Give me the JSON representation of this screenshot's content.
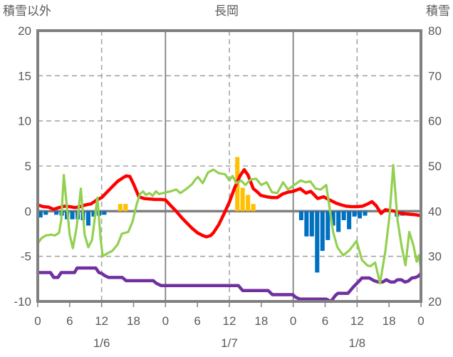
{
  "chart_data": {
    "type": "line",
    "combo": "bars + lines, dual axis",
    "title": "長岡",
    "left_axis": {
      "title": "積雪以外",
      "min": -10,
      "max": 20,
      "ticks": [
        20,
        15,
        10,
        5,
        0,
        -5,
        -10
      ],
      "tick_labels": [
        "20",
        "15",
        "10",
        "5",
        "0",
        "-5",
        "-10"
      ]
    },
    "right_axis": {
      "title": "積雪",
      "min": 20,
      "max": 80,
      "ticks": [
        80,
        70,
        60,
        50,
        40,
        30,
        20
      ],
      "tick_labels": [
        "80",
        "70",
        "60",
        "50",
        "40",
        "30",
        "20"
      ]
    },
    "x_axis": {
      "hours_total": 72,
      "label_interval_hours": 6,
      "hour_tick_labels": [
        "0",
        "6",
        "12",
        "18",
        "0",
        "6",
        "12",
        "18",
        "0",
        "6",
        "12",
        "18",
        "0"
      ],
      "date_labels": [
        {
          "label": "1/6",
          "hour": 12
        },
        {
          "label": "1/7",
          "hour": 36
        },
        {
          "label": "1/8",
          "hour": 60
        }
      ],
      "dashed_gridline_hours": [
        12,
        36,
        60
      ],
      "solid_gridline_hours": [
        24,
        48
      ]
    },
    "colors": {
      "red_line": "#FF0000",
      "green_line": "#92D050",
      "purple_line": "#7030A0",
      "blue_bars": "#0070C0",
      "orange_bars": "#FFC000",
      "border": "#808080",
      "gridline": "#A6A6A6",
      "text": "#595959"
    },
    "series": [
      {
        "name": "blue-bars",
        "type": "bar",
        "axis": "left",
        "color": "#0070C0",
        "points": [
          [
            0,
            -0.7
          ],
          [
            1,
            -0.4
          ],
          [
            3,
            -0.4
          ],
          [
            4,
            -0.5
          ],
          [
            5,
            -0.9
          ],
          [
            6,
            -0.9
          ],
          [
            7,
            -0.9
          ],
          [
            8,
            -1.0
          ],
          [
            9,
            -1.6
          ],
          [
            10,
            -0.6
          ],
          [
            11,
            -0.5
          ],
          [
            12,
            -0.4
          ],
          [
            49,
            -1.0
          ],
          [
            50,
            -2.8
          ],
          [
            51,
            -2.8
          ],
          [
            52,
            -6.8
          ],
          [
            53,
            -4.4
          ],
          [
            54,
            -3.2
          ],
          [
            55,
            -1.6
          ],
          [
            56,
            -2.3
          ],
          [
            57,
            -1.0
          ],
          [
            58,
            -2.0
          ],
          [
            59,
            -0.6
          ],
          [
            60,
            -0.8
          ],
          [
            61,
            -0.5
          ],
          [
            67,
            -0.6
          ],
          [
            68,
            -0.5
          ]
        ]
      },
      {
        "name": "orange-bars",
        "type": "bar",
        "axis": "left",
        "color": "#FFC000",
        "points": [
          [
            15,
            0.8
          ],
          [
            16,
            0.8
          ],
          [
            37,
            6.0
          ],
          [
            38,
            2.6
          ],
          [
            39,
            1.8
          ],
          [
            40,
            0.8
          ]
        ]
      },
      {
        "name": "purple-line",
        "type": "line",
        "axis": "right",
        "color": "#7030A0",
        "width": 4.5,
        "points": [
          [
            0,
            26.4
          ],
          [
            2.4,
            26.4
          ],
          [
            3,
            25.3
          ],
          [
            3.8,
            25.3
          ],
          [
            4.4,
            26.4
          ],
          [
            6.9,
            26.4
          ],
          [
            7.4,
            27.4
          ],
          [
            10.9,
            27.4
          ],
          [
            11.5,
            26.4
          ],
          [
            12,
            26.2
          ],
          [
            12.6,
            25.7
          ],
          [
            13.3,
            25.3
          ],
          [
            15.9,
            25.3
          ],
          [
            16.6,
            24.6
          ],
          [
            21.7,
            24.6
          ],
          [
            22.3,
            24.0
          ],
          [
            23.2,
            23.5
          ],
          [
            37.7,
            23.5
          ],
          [
            38.5,
            22.4
          ],
          [
            43.3,
            22.4
          ],
          [
            44.1,
            21.5
          ],
          [
            47.9,
            21.5
          ],
          [
            48.5,
            20.9
          ],
          [
            49.3,
            20.5
          ],
          [
            54.2,
            20.5
          ],
          [
            55.1,
            20.0
          ],
          [
            55.9,
            21.3
          ],
          [
            56.4,
            21.8
          ],
          [
            58.3,
            21.8
          ],
          [
            59.3,
            23.2
          ],
          [
            60.3,
            24.4
          ],
          [
            60.9,
            25.2
          ],
          [
            62.3,
            25.2
          ],
          [
            63.2,
            24.6
          ],
          [
            64,
            24.3
          ],
          [
            64.8,
            24.3
          ],
          [
            65.5,
            24.8
          ],
          [
            66.3,
            24.3
          ],
          [
            67,
            24.3
          ],
          [
            67.6,
            24.8
          ],
          [
            68.3,
            24.8
          ],
          [
            69,
            24.3
          ],
          [
            69.6,
            24.5
          ],
          [
            70.3,
            25.2
          ],
          [
            71,
            25.3
          ],
          [
            71.5,
            25.6
          ],
          [
            72,
            26.2
          ]
        ]
      },
      {
        "name": "red-line",
        "type": "line",
        "axis": "left",
        "color": "#FF0000",
        "width": 4.5,
        "points": [
          [
            0,
            0.7
          ],
          [
            1,
            0.5
          ],
          [
            2,
            0.45
          ],
          [
            3,
            0.2
          ],
          [
            4,
            0.4
          ],
          [
            5,
            0.55
          ],
          [
            6,
            0.5
          ],
          [
            7,
            0.4
          ],
          [
            8,
            0.5
          ],
          [
            9,
            0.7
          ],
          [
            10,
            0.8
          ],
          [
            11,
            1.2
          ],
          [
            12,
            1.5
          ],
          [
            13,
            2.1
          ],
          [
            14,
            2.7
          ],
          [
            15,
            3.3
          ],
          [
            16,
            3.7
          ],
          [
            16.6,
            3.9
          ],
          [
            17.3,
            3.85
          ],
          [
            18,
            3.0
          ],
          [
            19,
            1.6
          ],
          [
            20,
            1.4
          ],
          [
            21,
            1.35
          ],
          [
            22,
            1.3
          ],
          [
            23,
            1.3
          ],
          [
            24,
            1.25
          ],
          [
            25,
            0.6
          ],
          [
            26,
            0.0
          ],
          [
            27,
            -0.7
          ],
          [
            28,
            -1.3
          ],
          [
            29,
            -1.9
          ],
          [
            30,
            -2.4
          ],
          [
            31,
            -2.7
          ],
          [
            31.7,
            -2.85
          ],
          [
            32.5,
            -2.7
          ],
          [
            33,
            -2.4
          ],
          [
            34,
            -1.5
          ],
          [
            35,
            -0.3
          ],
          [
            36,
            1.0
          ],
          [
            37,
            2.6
          ],
          [
            38,
            3.9
          ],
          [
            38.8,
            4.6
          ],
          [
            39.5,
            4.0
          ],
          [
            40.5,
            2.5
          ],
          [
            41.3,
            2.1
          ],
          [
            41.9,
            1.75
          ],
          [
            43,
            1.6
          ],
          [
            44,
            1.5
          ],
          [
            45,
            1.5
          ],
          [
            46,
            1.9
          ],
          [
            47,
            2.1
          ],
          [
            48,
            2.2
          ],
          [
            49.3,
            2.5
          ],
          [
            50.4,
            2.0
          ],
          [
            51.3,
            2.2
          ],
          [
            52.6,
            1.4
          ],
          [
            53.7,
            1.6
          ],
          [
            54.3,
            1.4
          ],
          [
            55,
            1.2
          ],
          [
            56,
            0.9
          ],
          [
            57,
            0.7
          ],
          [
            58,
            0.55
          ],
          [
            59,
            0.5
          ],
          [
            60,
            0.5
          ],
          [
            61,
            0.55
          ],
          [
            62,
            0.8
          ],
          [
            62.8,
            1.05
          ],
          [
            63.6,
            0.6
          ],
          [
            64.5,
            -0.25
          ],
          [
            65.3,
            0.15
          ],
          [
            66,
            0.1
          ],
          [
            67,
            0.0
          ],
          [
            68,
            -0.2
          ],
          [
            69,
            -0.3
          ],
          [
            70,
            -0.35
          ],
          [
            71,
            -0.4
          ],
          [
            72,
            -0.5
          ]
        ]
      },
      {
        "name": "green-line",
        "type": "line",
        "axis": "left",
        "color": "#92D050",
        "width": 3.2,
        "points": [
          [
            0,
            -3.6
          ],
          [
            0.7,
            -3.0
          ],
          [
            1.5,
            -2.7
          ],
          [
            2.5,
            -2.6
          ],
          [
            3.2,
            -2.7
          ],
          [
            4,
            -2.4
          ],
          [
            4.4,
            -1.0
          ],
          [
            4.9,
            4.0
          ],
          [
            5.4,
            1.0
          ],
          [
            6,
            -2.6
          ],
          [
            6.6,
            -4.1
          ],
          [
            7.3,
            -1.8
          ],
          [
            8.1,
            2.5
          ],
          [
            8.8,
            -2.6
          ],
          [
            9.5,
            -4.0
          ],
          [
            10.2,
            -3.2
          ],
          [
            11.2,
            1.5
          ],
          [
            11.8,
            -3.0
          ],
          [
            12.2,
            -5.0
          ],
          [
            13,
            -4.7
          ],
          [
            14,
            -4.4
          ],
          [
            15,
            -3.7
          ],
          [
            15.8,
            -2.5
          ],
          [
            17,
            -2.3
          ],
          [
            17.8,
            -1.2
          ],
          [
            18.6,
            0.8
          ],
          [
            19.2,
            1.9
          ],
          [
            19.8,
            2.2
          ],
          [
            20.3,
            1.8
          ],
          [
            21,
            2.0
          ],
          [
            21.6,
            1.7
          ],
          [
            22.2,
            2.2
          ],
          [
            22.8,
            1.9
          ],
          [
            23.5,
            2.0
          ],
          [
            24.2,
            2.1
          ],
          [
            25,
            2.2
          ],
          [
            26,
            2.4
          ],
          [
            26.8,
            2.0
          ],
          [
            28,
            2.5
          ],
          [
            29,
            3.0
          ],
          [
            29.6,
            3.5
          ],
          [
            30.1,
            3.8
          ],
          [
            31,
            3.1
          ],
          [
            32,
            4.3
          ],
          [
            33,
            4.6
          ],
          [
            34,
            4.2
          ],
          [
            35.2,
            4.1
          ],
          [
            36,
            3.4
          ],
          [
            36.6,
            3.9
          ],
          [
            37.3,
            3.1
          ],
          [
            38.2,
            3.4
          ],
          [
            39,
            2.9
          ],
          [
            40,
            3.5
          ],
          [
            41,
            3.6
          ],
          [
            42,
            2.9
          ],
          [
            43,
            3.2
          ],
          [
            44,
            2.1
          ],
          [
            45,
            2.0
          ],
          [
            46.1,
            3.2
          ],
          [
            47,
            2.4
          ],
          [
            48.2,
            2.9
          ],
          [
            49.4,
            3.4
          ],
          [
            50.3,
            3.2
          ],
          [
            51.2,
            3.3
          ],
          [
            52.2,
            2.5
          ],
          [
            53.2,
            2.4
          ],
          [
            54.2,
            2.9
          ],
          [
            54.8,
            0.5
          ],
          [
            55.5,
            -2.3
          ],
          [
            56.3,
            -4.0
          ],
          [
            57.4,
            -4.9
          ],
          [
            58.6,
            -4.3
          ],
          [
            59.9,
            -3.3
          ],
          [
            60.9,
            -5.4
          ],
          [
            61.9,
            -6.0
          ],
          [
            62.5,
            -6.1
          ],
          [
            63.4,
            -5.7
          ],
          [
            64.3,
            -8.0
          ],
          [
            65.3,
            -4.5
          ],
          [
            66.1,
            -0.5
          ],
          [
            66.8,
            5.1
          ],
          [
            67.6,
            -1.0
          ],
          [
            68.4,
            -4.0
          ],
          [
            69.1,
            -6.0
          ],
          [
            69.8,
            -2.3
          ],
          [
            70.6,
            -3.8
          ],
          [
            71.2,
            -5.6
          ],
          [
            71.6,
            -4.9
          ],
          [
            72,
            -6.4
          ]
        ]
      }
    ]
  },
  "header": {
    "left_axis_title": "積雪以外",
    "chart_title": "長岡",
    "right_axis_title": "積雪"
  }
}
